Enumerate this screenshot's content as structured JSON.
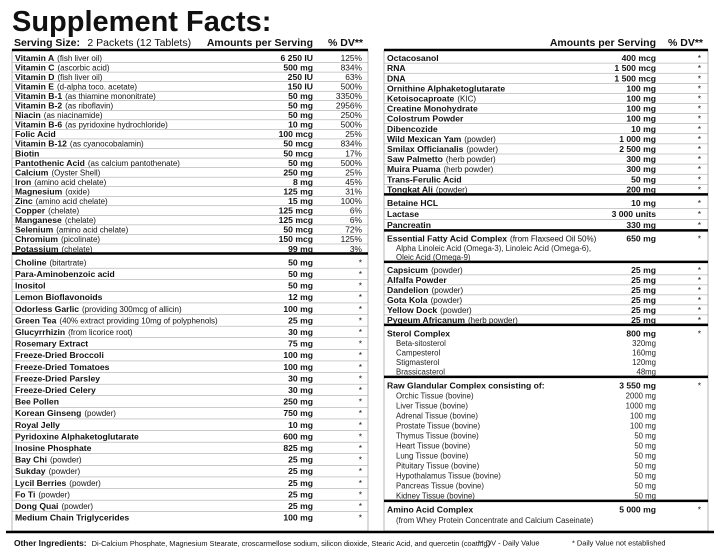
{
  "title": "Supplement Facts:",
  "serving_size": {
    "label": "Serving Size:",
    "value": "2 Packets (12 Tablets)"
  },
  "header_left": {
    "amount": "Amounts per Serving",
    "dv": "% DV**"
  },
  "header_right": {
    "amount": "Amounts per Serving",
    "dv": "% DV**"
  },
  "left": [
    {
      "rows": [
        {
          "name": "Vitamin A",
          "note": "(fish liver oil)",
          "amount": "6 250 IU",
          "dv": "125%"
        },
        {
          "name": "Vitamin C",
          "note": "(ascorbic acid)",
          "amount": "500 mg",
          "dv": "834%"
        },
        {
          "name": "Vitamin D",
          "note": "(fish liver oil)",
          "amount": "250 IU",
          "dv": "63%"
        },
        {
          "name": "Vitamin E",
          "note": "(d-alpha toco. acetate)",
          "amount": "150 IU",
          "dv": "500%"
        },
        {
          "name": "Vitamin B-1",
          "note": "(as thiamine mononitrate)",
          "amount": "50 mg",
          "dv": "3350%"
        },
        {
          "name": "Vitamin B-2",
          "note": "(as riboflavin)",
          "amount": "50 mg",
          "dv": "2956%"
        },
        {
          "name": "Niacin",
          "note": "(as niacinamide)",
          "amount": "50 mg",
          "dv": "250%"
        },
        {
          "name": "Vitamin B-6",
          "note": "(as pyridoxine hydrochloride)",
          "amount": "10 mg",
          "dv": "500%"
        },
        {
          "name": "Folic Acid",
          "amount": "100 mcg",
          "dv": "25%"
        },
        {
          "name": "Vitamin B-12",
          "note": "(as cyanocobalamin)",
          "amount": "50 mcg",
          "dv": "834%"
        },
        {
          "name": "Biotin",
          "amount": "50 mcg",
          "dv": "17%"
        },
        {
          "name": "Pantothenic Acid",
          "note": "(as calcium pantothenate)",
          "amount": "50 mg",
          "dv": "500%"
        },
        {
          "name": "Calcium",
          "note": "(Oyster Shell)",
          "amount": "250 mg",
          "dv": "25%"
        },
        {
          "name": "Iron",
          "note": "(amino acid chelate)",
          "amount": "8 mg",
          "dv": "45%"
        },
        {
          "name": "Magnesium",
          "note": "(oxide)",
          "amount": "125 mg",
          "dv": "31%"
        },
        {
          "name": "Zinc",
          "note": "(amino acid chelate)",
          "amount": "15 mg",
          "dv": "100%"
        },
        {
          "name": "Copper",
          "note": "(chelate)",
          "amount": "125 mcg",
          "dv": "6%"
        },
        {
          "name": "Manganese",
          "note": "(chelate)",
          "amount": "125 mcg",
          "dv": "6%"
        },
        {
          "name": "Selenium",
          "note": "(amino acid chelate)",
          "amount": "50 mcg",
          "dv": "72%"
        },
        {
          "name": "Chromium",
          "note": "(picolinate)",
          "amount": "150 mcg",
          "dv": "125%"
        },
        {
          "name": "Potassium",
          "note": "(chelate)",
          "amount": "99 mg",
          "dv": "3%"
        }
      ]
    },
    {
      "rows": [
        {
          "name": "Choline",
          "note": "(bitartrate)",
          "amount": "50 mg",
          "dv": "*"
        },
        {
          "name": "Para-Aminobenzoic acid",
          "amount": "50 mg",
          "dv": "*"
        },
        {
          "name": "Inositol",
          "amount": "50 mg",
          "dv": "*"
        },
        {
          "name": "Lemon Bioflavonoids",
          "amount": "12 mg",
          "dv": "*"
        },
        {
          "name": "Odorless Garlic",
          "note": "(providing 300mcg of allicin)",
          "amount": "100 mg",
          "dv": "*"
        },
        {
          "name": "Green Tea",
          "note": "(40% extract providing 10mg of polyphenols)",
          "amount": "25 mg",
          "dv": "*"
        },
        {
          "name": "Glucyrrhizin",
          "note": "(from licorice root)",
          "amount": "30 mg",
          "dv": "*"
        },
        {
          "name": "Rosemary Extract",
          "amount": "75 mg",
          "dv": "*"
        },
        {
          "name": "Freeze-Dried Broccoli",
          "amount": "100 mg",
          "dv": "*"
        },
        {
          "name": "Freeze-Dried Tomatoes",
          "amount": "100 mg",
          "dv": "*"
        },
        {
          "name": "Freeze-Dried Parsley",
          "amount": "30 mg",
          "dv": "*"
        },
        {
          "name": "Freeze-Dried Celery",
          "amount": "30 mg",
          "dv": "*"
        },
        {
          "name": "Bee Pollen",
          "amount": "250 mg",
          "dv": "*"
        },
        {
          "name": "Korean Ginseng",
          "note": "(powder)",
          "amount": "750 mg",
          "dv": "*"
        },
        {
          "name": "Royal Jelly",
          "amount": "10 mg",
          "dv": "*"
        },
        {
          "name": "Pyridoxine Alphaketoglutarate",
          "amount": "600 mg",
          "dv": "*"
        },
        {
          "name": "Inosine Phosphate",
          "amount": "825 mg",
          "dv": "*"
        },
        {
          "name": "Bay Chi",
          "note": "(powder)",
          "amount": "25 mg",
          "dv": "*"
        },
        {
          "name": "Sukday",
          "note": "(powder)",
          "amount": "25 mg",
          "dv": "*"
        },
        {
          "name": "Lycil Berries",
          "note": "(powder)",
          "amount": "25 mg",
          "dv": "*"
        },
        {
          "name": "Fo Ti",
          "note": "(powder)",
          "amount": "25 mg",
          "dv": "*"
        },
        {
          "name": "Dong Quai",
          "note": "(powder)",
          "amount": "25 mg",
          "dv": "*"
        },
        {
          "name": "Medium Chain Triglycerides",
          "amount": "100 mg",
          "dv": "*"
        }
      ]
    }
  ],
  "right": [
    {
      "rows": [
        {
          "name": "Octacosanol",
          "amount": "400 mcg",
          "dv": "*"
        },
        {
          "name": "RNA",
          "amount": "1 500 mcg",
          "dv": "*"
        },
        {
          "name": "DNA",
          "amount": "1 500 mcg",
          "dv": "*"
        },
        {
          "name": "Ornithine Alphaketoglutarate",
          "amount": "100 mg",
          "dv": "*"
        },
        {
          "name": "Ketoisocaproate",
          "note": "(KIC)",
          "amount": "100 mg",
          "dv": "*"
        },
        {
          "name": "Creatine Monohydrate",
          "amount": "100 mg",
          "dv": "*"
        },
        {
          "name": "Colostrum Powder",
          "amount": "100 mg",
          "dv": "*"
        },
        {
          "name": "Dibencozide",
          "amount": "10 mg",
          "dv": "*"
        },
        {
          "name": "Wild Mexican Yam",
          "note": "(powder)",
          "amount": "1 000 mg",
          "dv": "*"
        },
        {
          "name": "Smilax Officianalis",
          "note": "(powder)",
          "amount": "2 500 mg",
          "dv": "*"
        },
        {
          "name": "Saw Palmetto",
          "note": "(herb powder)",
          "amount": "300 mg",
          "dv": "*"
        },
        {
          "name": "Muira Puama",
          "note": "(herb powder)",
          "amount": "300 mg",
          "dv": "*"
        },
        {
          "name": "Trans-Ferulic Acid",
          "amount": "50 mg",
          "dv": "*"
        },
        {
          "name": "Tongkat Ali",
          "note": "(powder)",
          "amount": "200 mg",
          "dv": "*"
        }
      ]
    },
    {
      "rows": [
        {
          "name": "Betaine HCL",
          "amount": "10 mg",
          "dv": "*"
        },
        {
          "name": "Lactase",
          "amount": "3 000 units",
          "dv": "*"
        },
        {
          "name": "Pancreatin",
          "amount": "330 mg",
          "dv": "*"
        }
      ]
    },
    {
      "rows": [
        {
          "name": "Essential Fatty Acid Complex",
          "note": "(from Flaxseed Oil 50%)",
          "amount": "650 mg",
          "dv": "*",
          "lines": [
            "Alpha Linoleic Acid (Omega-3), Linoleic Acid (Omega-6),",
            "Oleic Acid (Omega-9)"
          ]
        }
      ]
    },
    {
      "rows": [
        {
          "name": "Capsicum",
          "note": "(powder)",
          "amount": "25 mg",
          "dv": "*"
        },
        {
          "name": "Alfalfa Powder",
          "amount": "25 mg",
          "dv": "*"
        },
        {
          "name": "Dandelion",
          "note": "(powder)",
          "amount": "25 mg",
          "dv": "*"
        },
        {
          "name": "Gota Kola",
          "note": "(powder)",
          "amount": "25 mg",
          "dv": "*"
        },
        {
          "name": "Yellow Dock",
          "note": "(powder)",
          "amount": "25 mg",
          "dv": "*"
        },
        {
          "name": "Pygeum Africanum",
          "note": "(herb powder)",
          "amount": "25 mg",
          "dv": "*"
        }
      ]
    },
    {
      "rows": [
        {
          "name": "Sterol Complex",
          "amount": "800 mg",
          "dv": "*",
          "items": [
            {
              "name": "Beta-sitosterol",
              "amount": "320mg"
            },
            {
              "name": "Campesterol",
              "amount": "160mg"
            },
            {
              "name": "Stigmasterol",
              "amount": "120mg"
            },
            {
              "name": "Brassicasterol",
              "amount": "48mg"
            }
          ]
        }
      ]
    },
    {
      "rows": [
        {
          "name": "Raw Glandular Complex consisting of:",
          "amount": "3 550 mg",
          "dv": "*",
          "items": [
            {
              "name": "Orchic Tissue (bovine)",
              "amount": "2000 mg"
            },
            {
              "name": "Liver Tissue (bovine)",
              "amount": "1000 mg"
            },
            {
              "name": "Adrenal Tissue (bovine)",
              "amount": "100 mg"
            },
            {
              "name": "Prostate Tissue (bovine)",
              "amount": "100 mg"
            },
            {
              "name": "Thymus Tissue (bovine)",
              "amount": "50 mg"
            },
            {
              "name": "Heart Tissue (bovine)",
              "amount": "50 mg"
            },
            {
              "name": "Lung Tissue (bovine)",
              "amount": "50 mg"
            },
            {
              "name": "Pituitary Tissue (bovine)",
              "amount": "50 mg"
            },
            {
              "name": "Hypothalamus Tissue (bovine)",
              "amount": "50 mg"
            },
            {
              "name": "Pancreas Tissue (bovine)",
              "amount": "50 mg"
            },
            {
              "name": "Kidney Tissue (bovine)",
              "amount": "50 mg"
            }
          ]
        }
      ]
    },
    {
      "rows": [
        {
          "name": "Amino Acid Complex",
          "amount": "5 000 mg",
          "dv": "*",
          "lines": [
            "(from Whey Protein Concentrate and Calcium Caseinate)"
          ]
        }
      ]
    }
  ],
  "footer": {
    "label": "Other Ingredients:",
    "text": "Di-Calcium Phosphate, Magnesium Stearate, croscarmellose sodium, silicon dioxide, Stearic Acid, and quercetin (coating)",
    "dv_note": "** DV - Daily Value",
    "na_note": "* Daily Value not established"
  }
}
